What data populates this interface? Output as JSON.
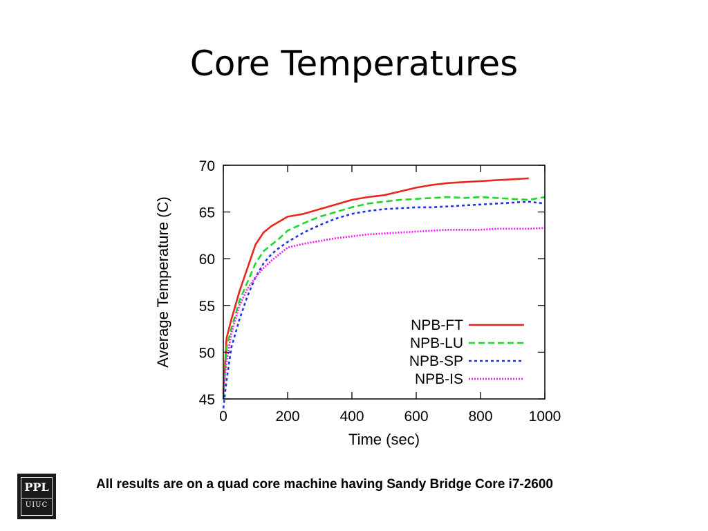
{
  "slide": {
    "title": "Core Temperatures",
    "footnote": "All results are on a quad core machine having Sandy Bridge Core i7-2600",
    "logo": {
      "top_text": "PPL",
      "bottom_text": "UIUC",
      "icon": "ppl-uiuc-logo"
    }
  },
  "chart_data": {
    "type": "line",
    "title": "",
    "xlabel": "Time (sec)",
    "ylabel": "Average Temperature (C)",
    "xlim": [
      0,
      1000
    ],
    "ylim": [
      45,
      70
    ],
    "xticks": [
      0,
      200,
      400,
      600,
      800,
      1000
    ],
    "yticks": [
      45,
      50,
      55,
      60,
      65,
      70
    ],
    "grid": false,
    "legend_position": "bottom-right",
    "x": [
      0,
      10,
      25,
      50,
      75,
      100,
      125,
      150,
      175,
      200,
      250,
      300,
      350,
      400,
      450,
      500,
      550,
      600,
      650,
      700,
      750,
      800,
      850,
      900,
      950,
      1000
    ],
    "series": [
      {
        "name": "NPB-FT",
        "color": "#e8261e",
        "style": "solid",
        "values": [
          45.5,
          51.5,
          53.5,
          56.5,
          59,
          61.5,
          62.8,
          63.5,
          64,
          64.5,
          64.8,
          65.3,
          65.8,
          66.3,
          66.6,
          66.8,
          67.2,
          67.6,
          67.9,
          68.1,
          68.2,
          68.3,
          68.4,
          68.5,
          68.6,
          null
        ]
      },
      {
        "name": "NPB-LU",
        "color": "#1bd82a",
        "style": "dashed",
        "values": [
          45,
          50.5,
          52.5,
          55.5,
          57.5,
          59.5,
          60.8,
          61.5,
          62.2,
          63,
          63.8,
          64.5,
          65,
          65.5,
          65.9,
          66.1,
          66.3,
          66.4,
          66.5,
          66.6,
          66.5,
          66.6,
          66.5,
          66.4,
          66.3,
          66.6
        ]
      },
      {
        "name": "NPB-SP",
        "color": "#1e30e8",
        "style": "dotted",
        "values": [
          44,
          47,
          50.5,
          53.5,
          56,
          58,
          59.5,
          60.5,
          61.2,
          61.8,
          62.8,
          63.6,
          64.3,
          64.8,
          65.1,
          65.3,
          65.4,
          65.5,
          65.5,
          65.6,
          65.7,
          65.8,
          65.9,
          66,
          66.1,
          65.9
        ]
      },
      {
        "name": "NPB-IS",
        "color": "#ee22ee",
        "style": "dotted",
        "values": [
          46,
          49,
          52,
          55,
          56.8,
          58,
          59,
          59.8,
          60.5,
          61.2,
          61.6,
          61.9,
          62.2,
          62.4,
          62.6,
          62.7,
          62.8,
          62.9,
          63,
          63.1,
          63.1,
          63.1,
          63.2,
          63.2,
          63.2,
          63.3
        ]
      }
    ]
  }
}
